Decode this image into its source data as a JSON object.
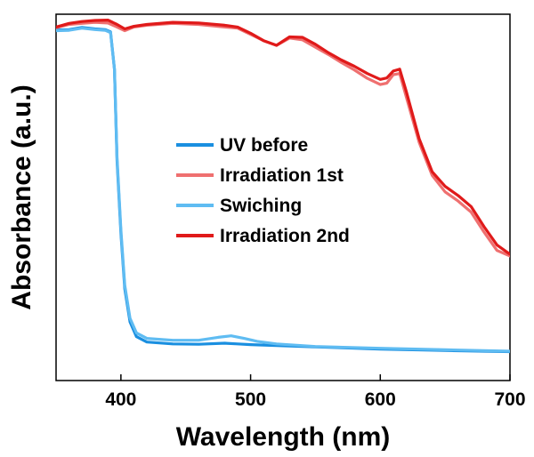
{
  "chart_data": {
    "type": "line",
    "xlabel": "Wavelength (nm)",
    "ylabel": "Absorbance (a.u.)",
    "xlim": [
      350,
      700
    ],
    "ylim": [
      0,
      1
    ],
    "x_ticks": [
      400,
      500,
      600,
      700
    ],
    "y_ticks_shown": false,
    "grid": false,
    "legend_position": "center",
    "series": [
      {
        "name": "UV before",
        "color": "#1a8fe0",
        "points": [
          [
            350,
            0.957
          ],
          [
            360,
            0.958
          ],
          [
            370,
            0.964
          ],
          [
            380,
            0.96
          ],
          [
            388,
            0.958
          ],
          [
            392,
            0.952
          ],
          [
            395,
            0.85
          ],
          [
            397,
            0.6
          ],
          [
            400,
            0.4
          ],
          [
            403,
            0.25
          ],
          [
            407,
            0.16
          ],
          [
            412,
            0.12
          ],
          [
            420,
            0.105
          ],
          [
            440,
            0.1
          ],
          [
            460,
            0.099
          ],
          [
            480,
            0.102
          ],
          [
            490,
            0.1
          ],
          [
            500,
            0.098
          ],
          [
            550,
            0.092
          ],
          [
            600,
            0.086
          ],
          [
            650,
            0.082
          ],
          [
            700,
            0.079
          ]
        ]
      },
      {
        "name": "Irradiation 1st",
        "color": "#ef7070",
        "points": [
          [
            350,
            0.963
          ],
          [
            360,
            0.972
          ],
          [
            370,
            0.975
          ],
          [
            380,
            0.978
          ],
          [
            390,
            0.976
          ],
          [
            397,
            0.965
          ],
          [
            403,
            0.955
          ],
          [
            410,
            0.965
          ],
          [
            420,
            0.97
          ],
          [
            440,
            0.975
          ],
          [
            460,
            0.972
          ],
          [
            480,
            0.965
          ],
          [
            490,
            0.962
          ],
          [
            500,
            0.945
          ],
          [
            510,
            0.928
          ],
          [
            520,
            0.915
          ],
          [
            530,
            0.935
          ],
          [
            540,
            0.93
          ],
          [
            550,
            0.91
          ],
          [
            560,
            0.89
          ],
          [
            570,
            0.868
          ],
          [
            580,
            0.848
          ],
          [
            590,
            0.825
          ],
          [
            600,
            0.808
          ],
          [
            605,
            0.812
          ],
          [
            610,
            0.835
          ],
          [
            615,
            0.838
          ],
          [
            620,
            0.775
          ],
          [
            630,
            0.65
          ],
          [
            640,
            0.56
          ],
          [
            650,
            0.515
          ],
          [
            660,
            0.49
          ],
          [
            670,
            0.46
          ],
          [
            680,
            0.405
          ],
          [
            690,
            0.355
          ],
          [
            700,
            0.34
          ]
        ]
      },
      {
        "name": "Swiching",
        "color": "#5fbcf2",
        "points": [
          [
            350,
            0.955
          ],
          [
            360,
            0.956
          ],
          [
            370,
            0.962
          ],
          [
            380,
            0.958
          ],
          [
            388,
            0.956
          ],
          [
            392,
            0.95
          ],
          [
            395,
            0.85
          ],
          [
            397,
            0.61
          ],
          [
            400,
            0.41
          ],
          [
            403,
            0.26
          ],
          [
            407,
            0.17
          ],
          [
            412,
            0.13
          ],
          [
            420,
            0.115
          ],
          [
            440,
            0.11
          ],
          [
            460,
            0.11
          ],
          [
            475,
            0.118
          ],
          [
            485,
            0.122
          ],
          [
            495,
            0.115
          ],
          [
            505,
            0.107
          ],
          [
            520,
            0.1
          ],
          [
            550,
            0.093
          ],
          [
            600,
            0.088
          ],
          [
            650,
            0.084
          ],
          [
            700,
            0.08
          ]
        ]
      },
      {
        "name": "Irradiation 2nd",
        "color": "#e01a1a",
        "points": [
          [
            350,
            0.965
          ],
          [
            360,
            0.975
          ],
          [
            370,
            0.98
          ],
          [
            380,
            0.983
          ],
          [
            390,
            0.984
          ],
          [
            397,
            0.972
          ],
          [
            403,
            0.96
          ],
          [
            410,
            0.967
          ],
          [
            420,
            0.972
          ],
          [
            440,
            0.978
          ],
          [
            460,
            0.976
          ],
          [
            480,
            0.97
          ],
          [
            490,
            0.965
          ],
          [
            500,
            0.948
          ],
          [
            510,
            0.928
          ],
          [
            520,
            0.915
          ],
          [
            530,
            0.938
          ],
          [
            540,
            0.937
          ],
          [
            550,
            0.918
          ],
          [
            560,
            0.895
          ],
          [
            570,
            0.875
          ],
          [
            580,
            0.858
          ],
          [
            590,
            0.838
          ],
          [
            600,
            0.822
          ],
          [
            605,
            0.826
          ],
          [
            610,
            0.845
          ],
          [
            615,
            0.85
          ],
          [
            620,
            0.79
          ],
          [
            630,
            0.66
          ],
          [
            640,
            0.57
          ],
          [
            650,
            0.53
          ],
          [
            660,
            0.505
          ],
          [
            670,
            0.475
          ],
          [
            680,
            0.42
          ],
          [
            690,
            0.37
          ],
          [
            700,
            0.345
          ]
        ]
      }
    ]
  }
}
